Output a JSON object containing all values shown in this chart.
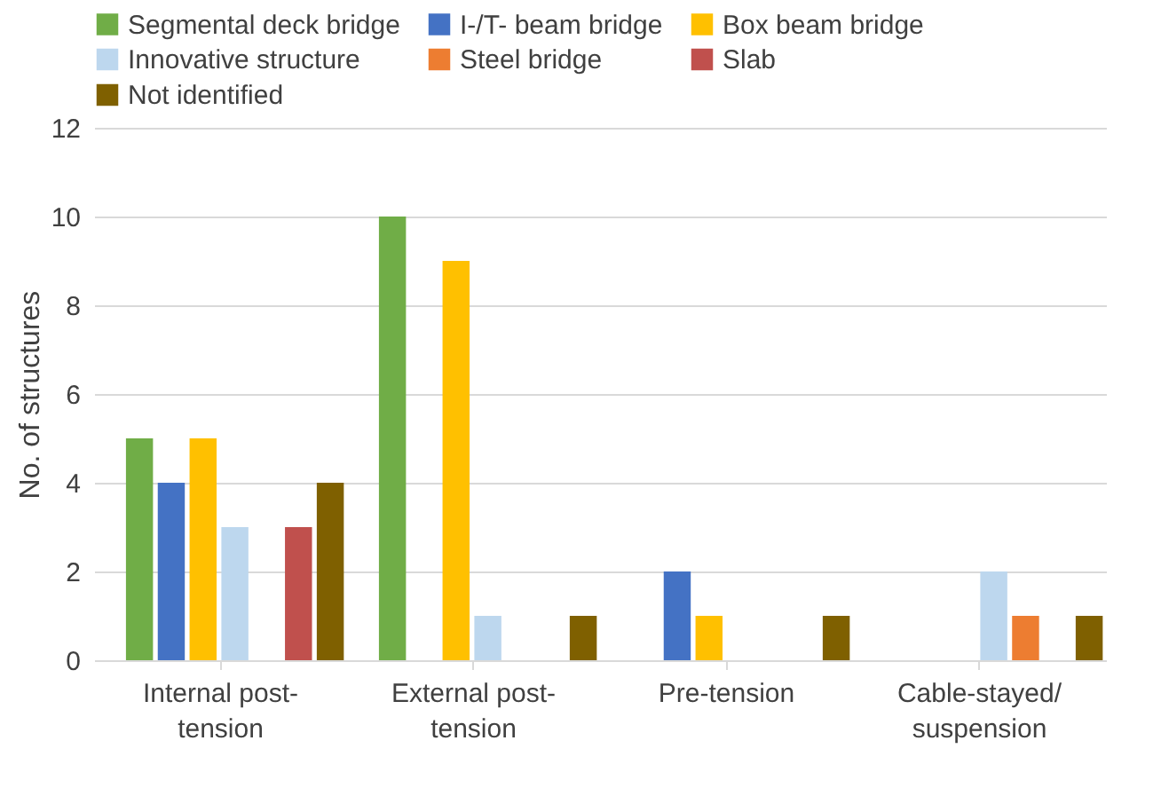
{
  "chart_data": {
    "type": "bar",
    "ylabel": "No. of structures",
    "categories": [
      "Internal post-tension",
      "External post-tension",
      "Pre-tension",
      "Cable-stayed/suspension"
    ],
    "series": [
      {
        "name": "Segmental deck bridge",
        "color": "#70ad47",
        "values": [
          5,
          10,
          0,
          0
        ]
      },
      {
        "name": "I-/T- beam bridge",
        "color": "#4472c4",
        "values": [
          4,
          0,
          2,
          0
        ]
      },
      {
        "name": "Box beam bridge",
        "color": "#ffc000",
        "values": [
          5,
          9,
          1,
          0
        ]
      },
      {
        "name": "Innovative structure",
        "color": "#bdd7ee",
        "values": [
          3,
          1,
          0,
          2
        ]
      },
      {
        "name": "Steel bridge",
        "color": "#ed7d31",
        "values": [
          0,
          0,
          0,
          1
        ]
      },
      {
        "name": "Slab",
        "color": "#c0504d",
        "values": [
          3,
          0,
          0,
          0
        ]
      },
      {
        "name": "Not identified",
        "color": "#7f6000",
        "values": [
          4,
          1,
          1,
          1
        ]
      }
    ],
    "ylim": [
      0,
      12
    ],
    "yticks": [
      0,
      2,
      4,
      6,
      8,
      10,
      12
    ],
    "grid": "y",
    "legend": "top"
  }
}
